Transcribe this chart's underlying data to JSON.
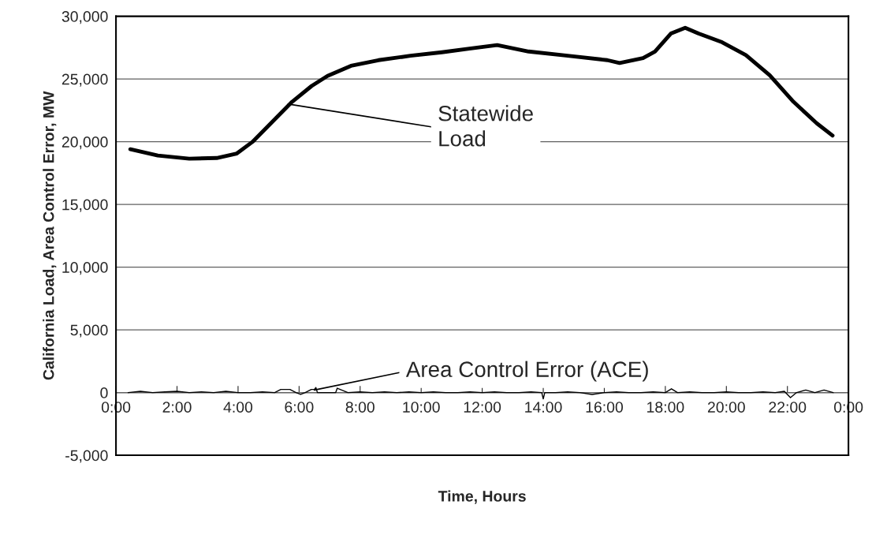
{
  "chart_data": {
    "type": "line",
    "xlabel": "Time, Hours",
    "ylabel": "California Load, Area Control Error, MW",
    "series": [
      {
        "color": "#000000",
        "x": [
          0.47,
          1.37,
          2.4,
          3.3,
          3.96,
          4.47,
          5.12,
          5.77,
          6.41,
          6.93,
          7.7,
          8.6,
          9.65,
          10.68,
          11.58,
          12.49,
          13.52,
          14.8,
          16.1,
          16.5,
          17.27,
          17.66,
          18.18,
          18.65,
          19.09,
          19.86,
          20.64,
          21.42,
          22.2,
          22.96,
          23.48
        ],
        "values": [
          19400,
          18900,
          18650,
          18700,
          19060,
          19980,
          21580,
          23180,
          24440,
          25240,
          26050,
          26500,
          26850,
          27130,
          27420,
          27700,
          27190,
          26850,
          26500,
          26270,
          26670,
          27190,
          28620,
          29080,
          28620,
          27930,
          26900,
          25300,
          23180,
          21470,
          20490
        ]
      },
      {
        "color": "#000000",
        "x": [
          0.4,
          0.8,
          1.2,
          1.6,
          2.0,
          2.4,
          2.8,
          3.2,
          3.6,
          4.0,
          4.4,
          4.8,
          5.2,
          5.4,
          5.7,
          5.9,
          6.05,
          6.2,
          6.4,
          6.5,
          6.55,
          6.6,
          6.9,
          7.2,
          7.25,
          7.6,
          8.0,
          8.4,
          8.8,
          9.2,
          9.6,
          10.0,
          10.4,
          10.8,
          11.2,
          11.6,
          12.0,
          12.4,
          12.8,
          13.2,
          13.6,
          13.95,
          14.0,
          14.05,
          14.4,
          14.8,
          15.2,
          15.6,
          16.0,
          16.4,
          16.8,
          17.2,
          17.6,
          18.0,
          18.2,
          18.4,
          18.8,
          19.2,
          19.6,
          20.0,
          20.4,
          20.8,
          21.2,
          21.6,
          21.9,
          22.1,
          22.3,
          22.6,
          22.9,
          23.2,
          23.5
        ],
        "values": [
          0,
          100,
          0,
          50,
          100,
          0,
          50,
          0,
          100,
          0,
          0,
          50,
          0,
          250,
          250,
          0,
          -150,
          0,
          250,
          250,
          400,
          0,
          0,
          0,
          350,
          0,
          50,
          0,
          50,
          0,
          50,
          0,
          50,
          0,
          0,
          50,
          0,
          50,
          0,
          0,
          50,
          0,
          -500,
          0,
          0,
          50,
          0,
          -150,
          0,
          50,
          0,
          0,
          50,
          0,
          300,
          0,
          50,
          0,
          0,
          50,
          0,
          0,
          50,
          0,
          100,
          -400,
          0,
          200,
          0,
          200,
          0
        ]
      }
    ],
    "xlim": [
      0,
      24
    ],
    "xticks": [
      {
        "value": 0,
        "label": "0:00"
      },
      {
        "value": 2,
        "label": "2:00"
      },
      {
        "value": 4,
        "label": "4:00"
      },
      {
        "value": 6,
        "label": "6:00"
      },
      {
        "value": 8,
        "label": "8:00"
      },
      {
        "value": 10,
        "label": "10:00"
      },
      {
        "value": 12,
        "label": "12:00"
      },
      {
        "value": 14,
        "label": "14:00"
      },
      {
        "value": 16,
        "label": "16:00"
      },
      {
        "value": 18,
        "label": "18:00"
      },
      {
        "value": 20,
        "label": "20:00"
      },
      {
        "value": 22,
        "label": "22:00"
      },
      {
        "value": 24,
        "label": "0:00"
      }
    ],
    "ylim": [
      -5000,
      30000
    ],
    "yticks": [
      {
        "value": -5000,
        "label": "-5,000"
      },
      0,
      {
        "value": 5000,
        "label": "5,000"
      },
      {
        "value": 10000,
        "label": "10,000"
      },
      {
        "value": 15000,
        "label": "15,000"
      },
      {
        "value": 20000,
        "label": "20,000"
      },
      {
        "value": 25000,
        "label": "25,000"
      },
      {
        "value": 30000,
        "label": "30,000"
      }
    ],
    "grid": "y",
    "annotations": [
      {
        "text": "Statewide\nLoad",
        "x": 5.64,
        "y": 23000
      },
      {
        "text": "Area Control Error (ACE)",
        "x": 6.5,
        "y": 200
      }
    ]
  }
}
